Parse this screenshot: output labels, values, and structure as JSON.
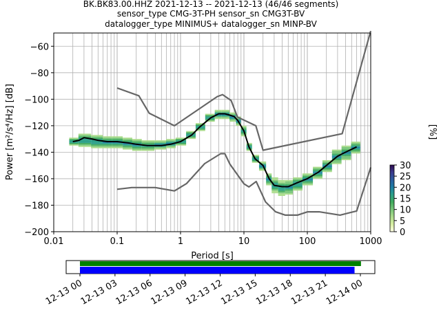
{
  "chart_data": {
    "type": "heatmap",
    "title_lines": [
      "BK.BK83.00.HHZ   2021-12-13 -- 2021-12-13  (46/46 segments)",
      "sensor_type CMG-3T-PH sensor_sn CMG3T-BV",
      "datalogger_type MINIMUS+ datalogger_sn MINP-BV"
    ],
    "xlabel": "Period [s]",
    "ylabel": "Power [m²/s⁴/Hz] [dB]",
    "x_scale": "log",
    "xlim": [
      0.01,
      1000
    ],
    "ylim": [
      -200,
      -50
    ],
    "x_ticks": [
      {
        "value": 0.01,
        "label": "0.01"
      },
      {
        "value": 0.1,
        "label": "0.1"
      },
      {
        "value": 1,
        "label": "1"
      },
      {
        "value": 10,
        "label": "10"
      },
      {
        "value": 100,
        "label": "100"
      },
      {
        "value": 1000,
        "label": "1000"
      }
    ],
    "y_ticks": [
      {
        "value": -60,
        "label": "−60"
      },
      {
        "value": -80,
        "label": "−80"
      },
      {
        "value": -100,
        "label": "−100"
      },
      {
        "value": -120,
        "label": "−120"
      },
      {
        "value": -140,
        "label": "−140"
      },
      {
        "value": -160,
        "label": "−160"
      },
      {
        "value": -180,
        "label": "−180"
      },
      {
        "value": -200,
        "label": "−200"
      }
    ],
    "grid": true,
    "colorbar": {
      "label": "[%]",
      "range": [
        0,
        30
      ],
      "ticks": [
        {
          "value": 0,
          "label": "0"
        },
        {
          "value": 5,
          "label": "5"
        },
        {
          "value": 10,
          "label": "10"
        },
        {
          "value": 15,
          "label": "15"
        },
        {
          "value": 20,
          "label": "20"
        },
        {
          "value": 25,
          "label": "25"
        },
        {
          "value": 30,
          "label": "30"
        }
      ],
      "colors": [
        "#ffffe5",
        "#d9f0a3",
        "#addd8e",
        "#78c679",
        "#41ab5d",
        "#2ca089",
        "#1d7fa5",
        "#2c5ea0",
        "#3b3b8f",
        "#2d0a4e"
      ]
    },
    "series": [
      {
        "role": "mean",
        "color": "#000000",
        "x": [
          0.02,
          0.025,
          0.03,
          0.04,
          0.05,
          0.07,
          0.1,
          0.15,
          0.2,
          0.3,
          0.5,
          0.7,
          1,
          1.5,
          2,
          3,
          4,
          5,
          6,
          7,
          8,
          10,
          12,
          15,
          20,
          25,
          30,
          40,
          50,
          70,
          100,
          150,
          200,
          300,
          400,
          600
        ],
        "y": [
          -132,
          -131,
          -129,
          -130,
          -131,
          -132,
          -132,
          -133,
          -134,
          -135,
          -135,
          -134,
          -132,
          -127,
          -121,
          -114,
          -111,
          -111,
          -112,
          -113,
          -116,
          -124,
          -136,
          -145,
          -150,
          -160,
          -165,
          -166,
          -166,
          -163,
          -160,
          -155,
          -150,
          -143,
          -140,
          -136
        ]
      },
      {
        "role": "nhnm",
        "color": "#666666",
        "x": [
          0.1,
          0.22,
          0.32,
          0.8,
          3.8,
          4.6,
          6.3,
          7.9,
          15.4,
          20,
          354.8,
          10000
        ],
        "y": [
          -91.5,
          -97.4,
          -110.5,
          -120,
          -98,
          -96.5,
          -101,
          -113.5,
          -120,
          -138.5,
          -126,
          -48.5
        ]
      },
      {
        "role": "nlnm",
        "color": "#666666",
        "x": [
          0.1,
          0.17,
          0.4,
          0.8,
          1.24,
          2.4,
          4.3,
          5,
          6,
          10,
          12,
          15.6,
          21.9,
          31.6,
          45,
          70,
          101,
          154,
          328,
          600,
          10000
        ],
        "y": [
          -168,
          -166.7,
          -166.7,
          -169.2,
          -163.7,
          -148.6,
          -141.1,
          -141.1,
          -149,
          -163.8,
          -166.2,
          -162.1,
          -177.5,
          -185,
          -187.5,
          -187.5,
          -185,
          -185,
          -187.5,
          -184.4,
          -151.5
        ]
      }
    ],
    "density_bands": [
      {
        "x": 0.02,
        "y": [
          -135,
          -129
        ]
      },
      {
        "x": 0.03,
        "y": [
          -136,
          -126
        ]
      },
      {
        "x": 0.05,
        "y": [
          -137,
          -127
        ]
      },
      {
        "x": 0.07,
        "y": [
          -137,
          -128
        ]
      },
      {
        "x": 0.1,
        "y": [
          -137,
          -128
        ]
      },
      {
        "x": 0.15,
        "y": [
          -138,
          -129
        ]
      },
      {
        "x": 0.2,
        "y": [
          -139,
          -130
        ]
      },
      {
        "x": 0.3,
        "y": [
          -139,
          -131
        ]
      },
      {
        "x": 0.5,
        "y": [
          -138,
          -131
        ]
      },
      {
        "x": 0.7,
        "y": [
          -137,
          -130
        ]
      },
      {
        "x": 1,
        "y": [
          -135,
          -129
        ]
      },
      {
        "x": 1.5,
        "y": [
          -130,
          -124
        ]
      },
      {
        "x": 2,
        "y": [
          -124,
          -118
        ]
      },
      {
        "x": 3,
        "y": [
          -117,
          -111
        ]
      },
      {
        "x": 4,
        "y": [
          -115,
          -108
        ]
      },
      {
        "x": 5,
        "y": [
          -115,
          -108
        ]
      },
      {
        "x": 7,
        "y": [
          -117,
          -110
        ]
      },
      {
        "x": 8,
        "y": [
          -120,
          -113
        ]
      },
      {
        "x": 10,
        "y": [
          -128,
          -120
        ]
      },
      {
        "x": 12,
        "y": [
          -139,
          -133
        ]
      },
      {
        "x": 15,
        "y": [
          -148,
          -142
        ]
      },
      {
        "x": 20,
        "y": [
          -154,
          -147
        ]
      },
      {
        "x": 25,
        "y": [
          -165,
          -156
        ]
      },
      {
        "x": 30,
        "y": [
          -171,
          -159
        ]
      },
      {
        "x": 40,
        "y": [
          -173,
          -161
        ]
      },
      {
        "x": 50,
        "y": [
          -172,
          -161
        ]
      },
      {
        "x": 70,
        "y": [
          -169,
          -159
        ]
      },
      {
        "x": 100,
        "y": [
          -165,
          -156
        ]
      },
      {
        "x": 150,
        "y": [
          -160,
          -151
        ]
      },
      {
        "x": 200,
        "y": [
          -155,
          -146
        ]
      },
      {
        "x": 300,
        "y": [
          -149,
          -138
        ]
      },
      {
        "x": 400,
        "y": [
          -146,
          -135
        ]
      },
      {
        "x": 600,
        "y": [
          -141,
          -132
        ]
      }
    ],
    "timeline": {
      "ticks": [
        "12-13 00",
        "12-13 03",
        "12-13 06",
        "12-13 09",
        "12-13 12",
        "12-13 15",
        "12-13 18",
        "12-13 21",
        "12-14 00"
      ],
      "green_bar": {
        "start_hours": 0,
        "end_hours": 24.05,
        "color": "#008000"
      },
      "blue_bar": {
        "start_hours": 0,
        "end_hours": 23.5,
        "color": "#0000ff"
      }
    }
  }
}
